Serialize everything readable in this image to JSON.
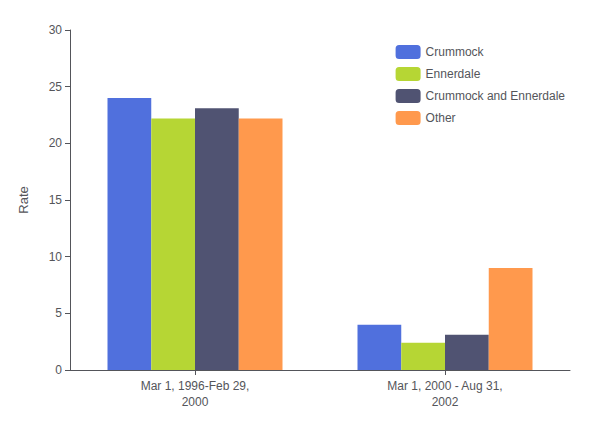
{
  "chart_data": {
    "type": "bar",
    "categories": [
      "Mar 1, 1996-Feb 29,\n2000",
      "Mar 1, 2000 - Aug 31,\n2002"
    ],
    "series": [
      {
        "name": "Crummock",
        "values": [
          24.0,
          4.0
        ]
      },
      {
        "name": "Ennerdale",
        "values": [
          22.2,
          2.4
        ]
      },
      {
        "name": "Crummock and Ennerdale",
        "values": [
          23.1,
          3.1
        ]
      },
      {
        "name": "Other",
        "values": [
          22.2,
          9.0
        ]
      }
    ],
    "ylabel": "Rate",
    "ylim": [
      0,
      30
    ],
    "yticks": [
      0,
      5,
      10,
      15,
      20,
      25,
      30
    ],
    "grid": false,
    "legend": "upper right"
  }
}
